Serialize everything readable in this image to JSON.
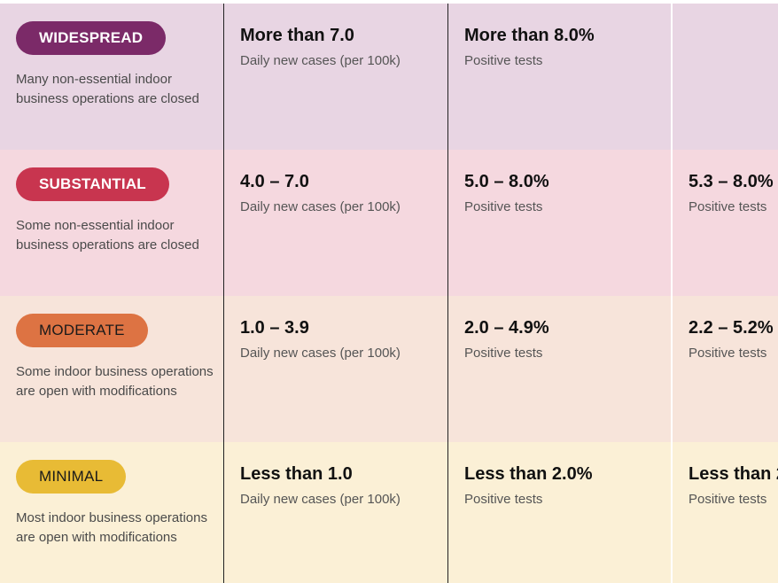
{
  "tiers": [
    {
      "id": "widespread",
      "label": "WIDESPREAD",
      "description": "Many non-essential indoor business operations are closed",
      "color": "#7b2a68",
      "metrics": [
        {
          "value": "More than 7.0",
          "label": "Daily new cases (per 100k)"
        },
        {
          "value": "More than 8.0%",
          "label": "Positive tests"
        },
        {
          "value": "",
          "label": ""
        }
      ]
    },
    {
      "id": "substantial",
      "label": "SUBSTANTIAL",
      "description": "Some non-essential indoor business operations are closed",
      "color": "#c8354f",
      "metrics": [
        {
          "value": "4.0 – 7.0",
          "label": "Daily new cases (per 100k)"
        },
        {
          "value": "5.0 – 8.0%",
          "label": "Positive tests"
        },
        {
          "value": "5.3 – 8.0%",
          "label": "Positive tests"
        }
      ]
    },
    {
      "id": "moderate",
      "label": "MODERATE",
      "description": "Some indoor business operations are open with modifications",
      "color": "#dd7343",
      "metrics": [
        {
          "value": "1.0 – 3.9",
          "label": "Daily new cases (per 100k)"
        },
        {
          "value": "2.0 – 4.9%",
          "label": "Positive tests"
        },
        {
          "value": "2.2 – 5.2%",
          "label": "Positive tests"
        }
      ]
    },
    {
      "id": "minimal",
      "label": "MINIMAL",
      "description": "Most indoor business operations are open with modifications",
      "color": "#e8bb35",
      "metrics": [
        {
          "value": "Less than 1.0",
          "label": "Daily new cases (per 100k)"
        },
        {
          "value": "Less than 2.0%",
          "label": "Positive tests"
        },
        {
          "value": "Less than 2",
          "label": "Positive tests"
        }
      ]
    }
  ]
}
